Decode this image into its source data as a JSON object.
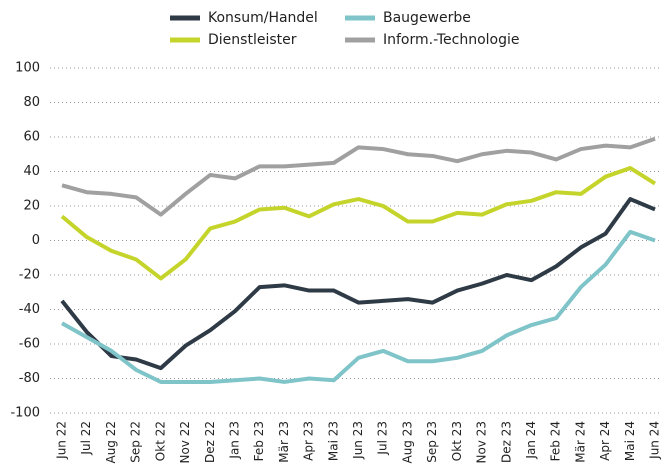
{
  "chart_data": {
    "type": "line",
    "categories": [
      "Jun 22",
      "Jul 22",
      "Aug 22",
      "Sep 22",
      "Okt 22",
      "Nov 22",
      "Dez 22",
      "Jan 23",
      "Feb 23",
      "Mär 23",
      "Apr 23",
      "Mai 23",
      "Jun 23",
      "Jul 23",
      "Aug 23",
      "Sep 23",
      "Okt 23",
      "Nov 23",
      "Dez 23",
      "Jan 24",
      "Feb 24",
      "Mär 24",
      "Apr 24",
      "Mai 24",
      "Jun 24"
    ],
    "series": [
      {
        "name": "Konsum/Handel",
        "color": "#2e3a45",
        "values": [
          -35,
          -53,
          -67,
          -69,
          -74,
          -61,
          -52,
          -41,
          -27,
          -26,
          -29,
          -29,
          -36,
          -35,
          -34,
          -36,
          -29,
          -25,
          -20,
          -23,
          -15,
          -4,
          4,
          24,
          18
        ]
      },
      {
        "name": "Baugewerbe",
        "color": "#7fc4c8",
        "values": [
          -48,
          -56,
          -64,
          -75,
          -82,
          -82,
          -82,
          -81,
          -80,
          -82,
          -80,
          -81,
          -68,
          -64,
          -70,
          -70,
          -68,
          -64,
          -55,
          -49,
          -45,
          -27,
          -14,
          5,
          0
        ]
      },
      {
        "name": "Dienstleister",
        "color": "#c5d42a",
        "values": [
          14,
          2,
          -6,
          -11,
          -22,
          -11,
          7,
          11,
          18,
          19,
          14,
          21,
          24,
          20,
          11,
          11,
          16,
          15,
          21,
          23,
          28,
          27,
          37,
          42,
          33
        ]
      },
      {
        "name": "Inform.-Technologie",
        "color": "#a0a0a0",
        "values": [
          32,
          28,
          27,
          25,
          15,
          27,
          38,
          36,
          43,
          43,
          44,
          45,
          54,
          53,
          50,
          49,
          46,
          50,
          52,
          51,
          47,
          53,
          55,
          54,
          59
        ]
      }
    ],
    "ylim": [
      -100,
      100
    ],
    "yticks": [
      -100,
      -80,
      -60,
      -40,
      -20,
      0,
      20,
      40,
      60,
      80,
      100
    ],
    "grid": true
  }
}
